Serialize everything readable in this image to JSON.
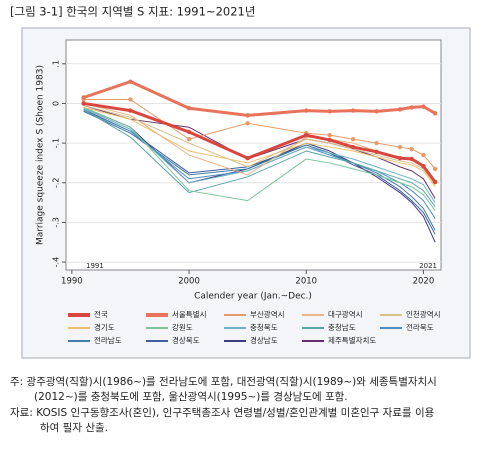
{
  "chart_data": {
    "type": "line",
    "title": "[그림 3-1] 한국의 지역별 S 지표: 1991~2021년",
    "xlabel": "Calender year (Jan.~Dec.)",
    "ylabel": "Marriage squeeze index S (Shoen 1983)",
    "annotations": [
      "1991",
      "2021"
    ],
    "x": [
      1991,
      1995,
      2000,
      2005,
      2010,
      2012,
      2014,
      2016,
      2018,
      2019,
      2020,
      2021
    ],
    "xlim": [
      1989.5,
      2021.5
    ],
    "xticks": [
      1990,
      2000,
      2010,
      2020
    ],
    "ylim": [
      -0.42,
      0.16
    ],
    "yticks": [
      {
        "value": 0.1,
        "label": ".1"
      },
      0,
      {
        "value": -0.1,
        "label": "-.1"
      },
      {
        "value": -0.2,
        "label": "-.2"
      },
      {
        "value": -0.3,
        "label": "-.3"
      },
      {
        "value": -0.4,
        "label": "-.4"
      }
    ],
    "grid": true,
    "series": [
      {
        "name": "전국",
        "color": "#d9463f",
        "values": [
          0,
          -0.018,
          -0.072,
          -0.138,
          -0.08,
          -0.092,
          -0.11,
          -0.122,
          -0.138,
          -0.14,
          -0.158,
          -0.198
        ]
      },
      {
        "name": "서울특별시",
        "color": "#e8735a",
        "values": [
          0.015,
          0.055,
          -0.012,
          -0.03,
          -0.018,
          -0.02,
          -0.018,
          -0.02,
          -0.015,
          -0.01,
          -0.008,
          -0.025
        ]
      },
      {
        "name": "부산광역시",
        "color": "#e89a6a",
        "values": [
          0.01,
          0.01,
          -0.09,
          -0.05,
          -0.075,
          -0.08,
          -0.09,
          -0.1,
          -0.11,
          -0.115,
          -0.13,
          -0.165
        ]
      },
      {
        "name": "대구광역시",
        "color": "#e8b488",
        "values": [
          0.0,
          -0.03,
          -0.13,
          -0.18,
          -0.085,
          -0.09,
          -0.1,
          -0.12,
          -0.135,
          -0.14,
          -0.16,
          -0.2
        ]
      },
      {
        "name": "인천광역시",
        "color": "#d8c088",
        "values": [
          -0.005,
          -0.035,
          -0.1,
          -0.16,
          -0.09,
          -0.1,
          -0.115,
          -0.13,
          -0.145,
          -0.15,
          -0.165,
          -0.205
        ]
      },
      {
        "name": "경기도",
        "color": "#e8c070",
        "values": [
          -0.01,
          -0.04,
          -0.12,
          -0.15,
          -0.1,
          -0.11,
          -0.12,
          -0.135,
          -0.15,
          -0.155,
          -0.17,
          -0.21
        ]
      },
      {
        "name": "강원도",
        "color": "#7cc49c",
        "values": [
          -0.01,
          -0.06,
          -0.22,
          -0.245,
          -0.14,
          -0.15,
          -0.165,
          -0.18,
          -0.2,
          -0.21,
          -0.23,
          -0.27
        ]
      },
      {
        "name": "충청북도",
        "color": "#6eb0c4",
        "values": [
          -0.012,
          -0.065,
          -0.2,
          -0.17,
          -0.11,
          -0.125,
          -0.14,
          -0.16,
          -0.18,
          -0.19,
          -0.205,
          -0.25
        ]
      },
      {
        "name": "충청남도",
        "color": "#5aa6a6",
        "values": [
          -0.015,
          -0.085,
          -0.225,
          -0.185,
          -0.12,
          -0.135,
          -0.15,
          -0.17,
          -0.19,
          -0.2,
          -0.22,
          -0.26
        ]
      },
      {
        "name": "전라북도",
        "color": "#4f8ec4",
        "values": [
          -0.018,
          -0.07,
          -0.19,
          -0.17,
          -0.11,
          -0.13,
          -0.15,
          -0.17,
          -0.2,
          -0.22,
          -0.245,
          -0.29
        ]
      },
      {
        "name": "전라남도",
        "color": "#3f7ea0",
        "values": [
          -0.02,
          -0.075,
          -0.18,
          -0.165,
          -0.105,
          -0.125,
          -0.15,
          -0.175,
          -0.21,
          -0.235,
          -0.265,
          -0.32
        ]
      },
      {
        "name": "경상북도",
        "color": "#3e5ea0",
        "values": [
          -0.015,
          -0.07,
          -0.175,
          -0.16,
          -0.105,
          -0.125,
          -0.155,
          -0.18,
          -0.22,
          -0.245,
          -0.275,
          -0.33
        ]
      },
      {
        "name": "경상남도",
        "color": "#3c3c80",
        "values": [
          -0.01,
          -0.06,
          -0.2,
          -0.165,
          -0.1,
          -0.12,
          -0.15,
          -0.185,
          -0.225,
          -0.25,
          -0.285,
          -0.35
        ]
      },
      {
        "name": "제주특별자치도",
        "color": "#63306e",
        "values": [
          -0.005,
          -0.04,
          -0.06,
          -0.14,
          -0.09,
          -0.1,
          -0.115,
          -0.135,
          -0.16,
          -0.17,
          -0.19,
          -0.24
        ]
      }
    ]
  },
  "notes": [
    "주: 광주광역(직할)시(1986~)를 전라남도에 포함, 대전광역(직할)시(1989~)와 세종특별자치시",
    "(2012~)를 충청북도에 포함, 울산광역시(1995~)를 경상남도에 포함.",
    "자료: KOSIS 인구동향조사(혼인), 인구주택총조사 연령별/성별/혼인관계별 미혼인구 자료를 이용",
    "하여 필자 산출."
  ]
}
